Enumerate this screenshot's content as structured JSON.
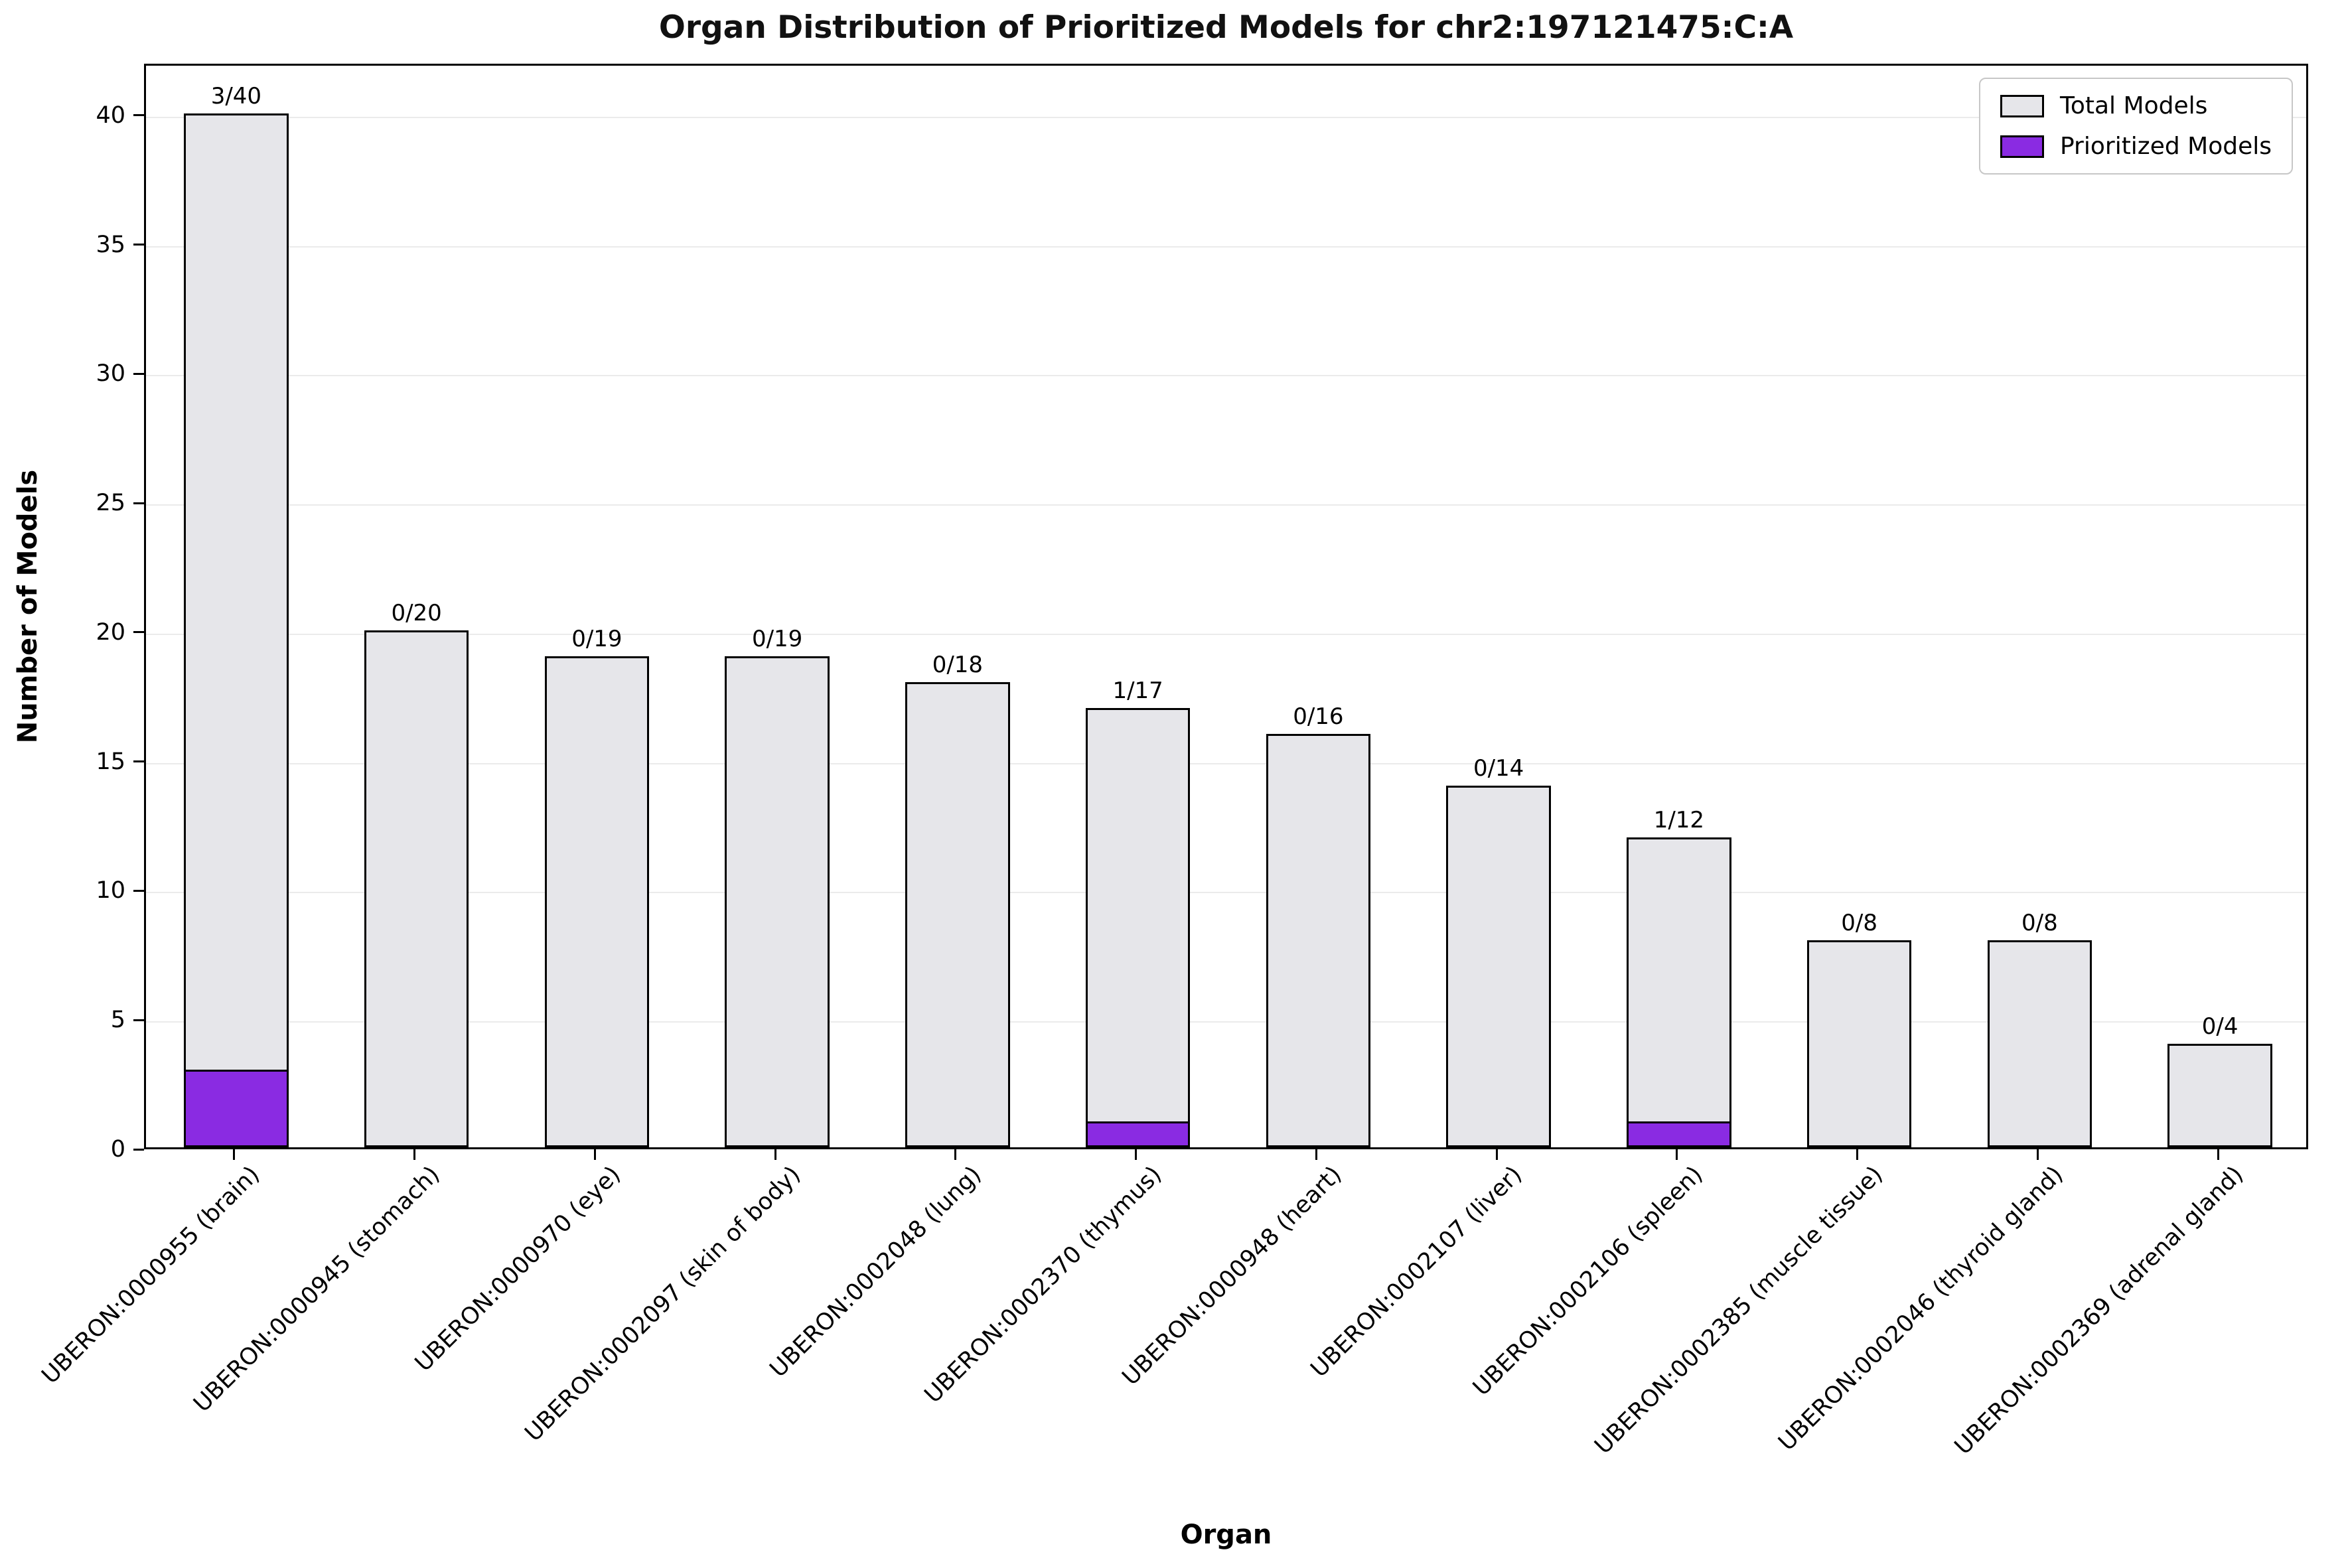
{
  "chart_data": {
    "type": "bar",
    "title": "Organ Distribution of Prioritized Models for chr2:197121475:C:A",
    "xlabel": "Organ",
    "ylabel": "Number of Models",
    "ylim": [
      0,
      42
    ],
    "yticks": [
      0,
      5,
      10,
      15,
      20,
      25,
      30,
      35,
      40
    ],
    "grid": "horizontal-faint",
    "legend_position": "upper-right",
    "categories": [
      "UBERON:0000955 (brain)",
      "UBERON:0000945 (stomach)",
      "UBERON:0000970 (eye)",
      "UBERON:0002097 (skin of body)",
      "UBERON:0002048 (lung)",
      "UBERON:0002370 (thymus)",
      "UBERON:0000948 (heart)",
      "UBERON:0002107 (liver)",
      "UBERON:0002106 (spleen)",
      "UBERON:0002385 (muscle tissue)",
      "UBERON:0002046 (thyroid gland)",
      "UBERON:0002369 (adrenal gland)"
    ],
    "series": [
      {
        "name": "Total Models",
        "color": "#e6e6ea",
        "edge_color": "#000000",
        "values": [
          40,
          20,
          19,
          19,
          18,
          17,
          16,
          14,
          12,
          8,
          8,
          4
        ]
      },
      {
        "name": "Prioritized Models",
        "color": "#8A2BE2",
        "edge_color": "#000000",
        "values": [
          3,
          0,
          0,
          0,
          0,
          1,
          0,
          0,
          1,
          0,
          0,
          0
        ]
      }
    ],
    "bar_labels": [
      "3/40",
      "0/20",
      "0/19",
      "0/19",
      "0/18",
      "1/17",
      "0/16",
      "0/14",
      "1/12",
      "0/8",
      "0/8",
      "0/4"
    ]
  }
}
